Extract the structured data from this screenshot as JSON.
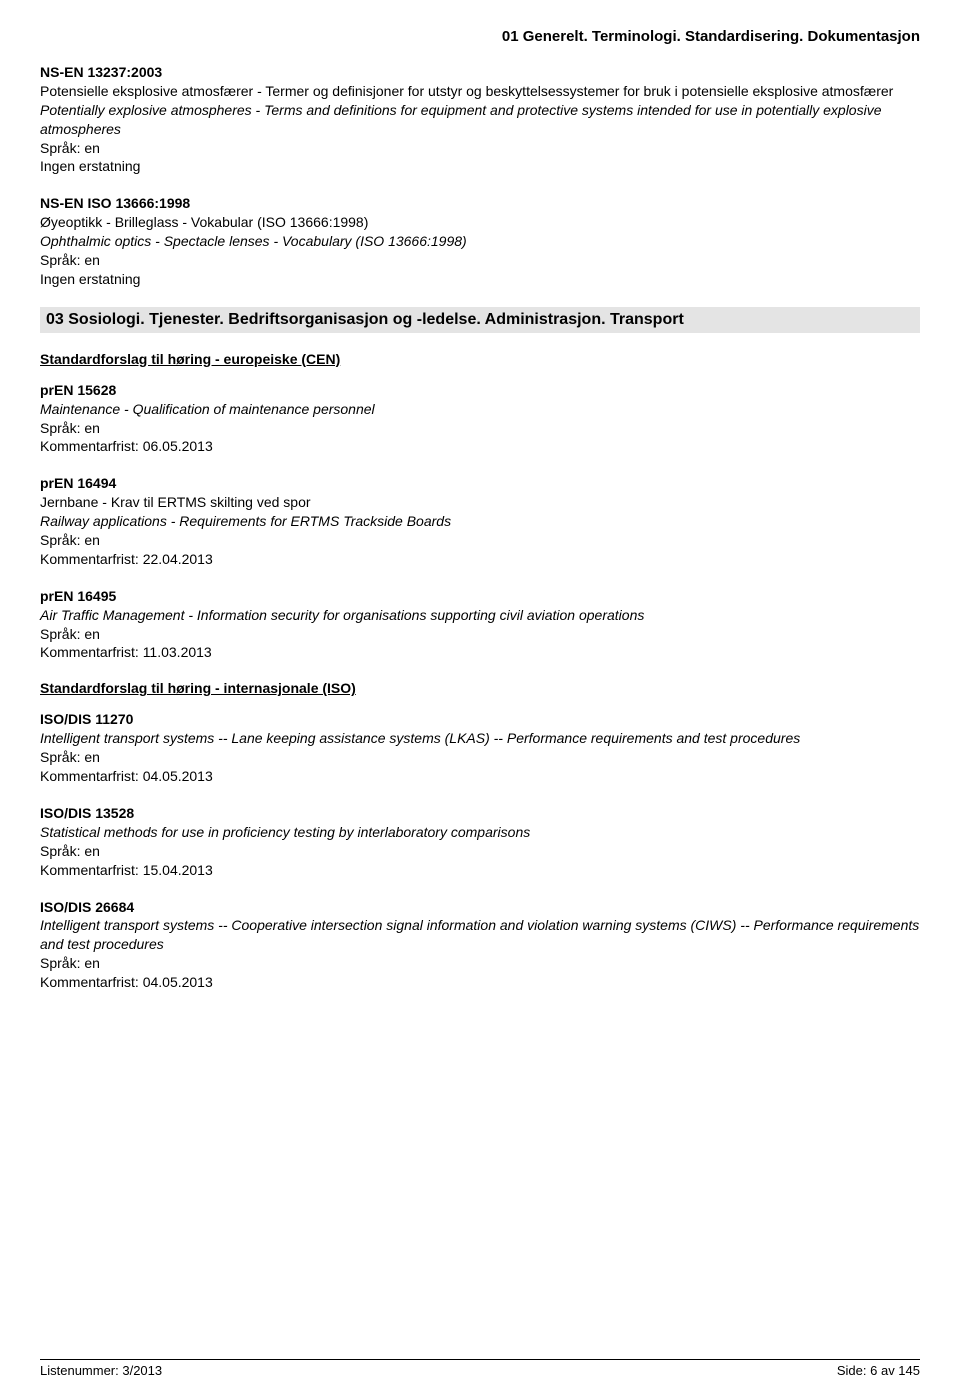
{
  "header": {
    "title": "01  Generelt. Terminologi. Standardisering. Dokumentasjon"
  },
  "entries_top": [
    {
      "code": "NS-EN 13237:2003",
      "title_no": "Potensielle eksplosive atmosfærer - Termer og definisjoner for utstyr og beskyttelsessystemer for bruk i potensielle eksplosive atmosfærer",
      "title_en": "Potentially explosive atmospheres - Terms and definitions for equipment and protective systems intended for use in potentially explosive atmospheres",
      "lang": "Språk: en",
      "note": "Ingen erstatning"
    },
    {
      "code": "NS-EN ISO 13666:1998",
      "title_no": "Øyeoptikk - Brilleglass - Vokabular (ISO 13666:1998)",
      "title_en": "Ophthalmic optics - Spectacle lenses - Vocabulary (ISO 13666:1998)",
      "lang": "Språk: en",
      "note": "Ingen erstatning"
    }
  ],
  "section03": {
    "heading": "03  Sosiologi. Tjenester. Bedriftsorganisasjon og -ledelse. Administrasjon. Transport",
    "cen": {
      "heading": "Standardforslag til høring - europeiske (CEN)",
      "entries": [
        {
          "code": "prEN 15628",
          "title_en": "Maintenance - Qualification of maintenance personnel",
          "lang": "Språk: en",
          "deadline": "Kommentarfrist: 06.05.2013"
        },
        {
          "code": "prEN 16494",
          "title_no": "Jernbane - Krav til ERTMS skilting ved spor",
          "title_en": "Railway applications - Requirements for ERTMS Trackside Boards",
          "lang": "Språk: en",
          "deadline": "Kommentarfrist: 22.04.2013"
        },
        {
          "code": "prEN 16495",
          "title_en": "Air Traffic Management - Information security for organisations supporting civil aviation operations",
          "lang": "Språk: en",
          "deadline": "Kommentarfrist: 11.03.2013"
        }
      ]
    },
    "iso": {
      "heading": "Standardforslag til høring - internasjonale (ISO)",
      "entries": [
        {
          "code": "ISO/DIS 11270",
          "title_en": "Intelligent transport systems -- Lane keeping assistance systems (LKAS) -- Performance requirements and test procedures",
          "lang": "Språk: en",
          "deadline": "Kommentarfrist: 04.05.2013"
        },
        {
          "code": "ISO/DIS 13528",
          "title_en": "Statistical methods for use in proficiency testing by interlaboratory comparisons",
          "lang": "Språk: en",
          "deadline": "Kommentarfrist: 15.04.2013"
        },
        {
          "code": "ISO/DIS 26684",
          "title_en": "Intelligent transport systems -- Cooperative intersection signal information and violation warning systems (CIWS) -- Performance requirements and test procedures",
          "lang": "Språk: en",
          "deadline": "Kommentarfrist: 04.05.2013"
        }
      ]
    }
  },
  "footer": {
    "left": "Listenummer: 3/2013",
    "right": "Side: 6 av 145"
  }
}
